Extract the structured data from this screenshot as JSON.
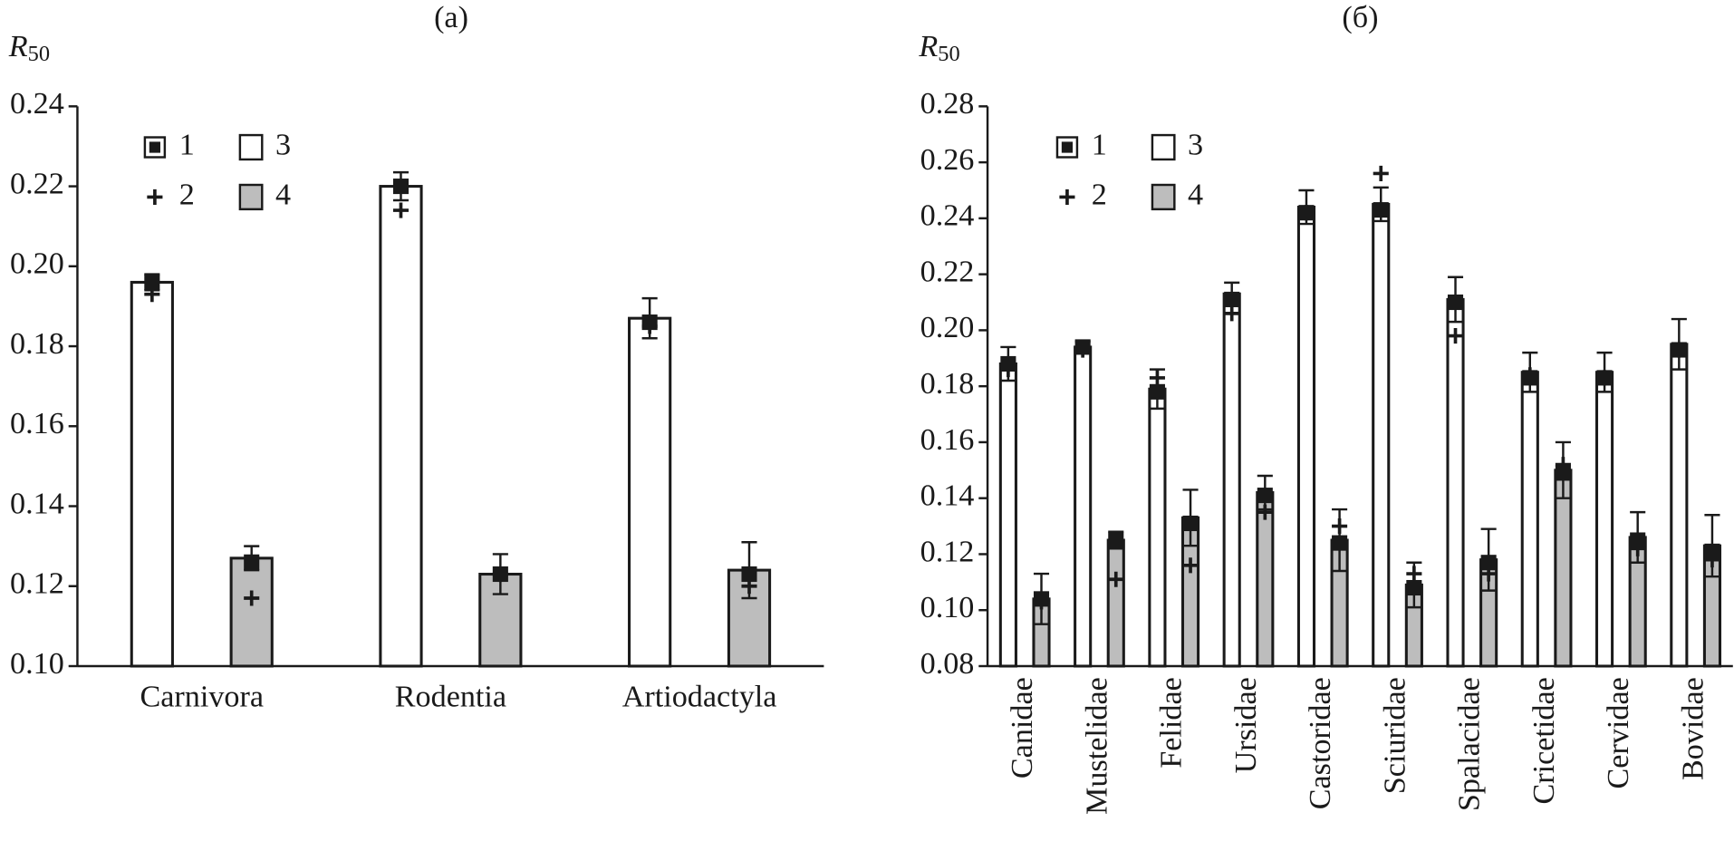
{
  "chart_data": [
    {
      "type": "bar",
      "title": "(a)",
      "y_label": {
        "symbol": "R",
        "subscript": "50"
      },
      "categories": [
        "Carnivora",
        "Rodentia",
        "Artiodactyla"
      ],
      "ylim": [
        0.1,
        0.24
      ],
      "yticks": [
        {
          "value": 0.1,
          "label": "0.10"
        },
        0.12,
        0.14,
        0.16,
        0.18,
        {
          "value": 0.2,
          "label": "0.20"
        },
        0.22,
        0.24
      ],
      "markers": [
        {
          "name": "1",
          "symbol": "square"
        },
        {
          "name": "2",
          "symbol": "plus"
        }
      ],
      "series": [
        {
          "name": "3",
          "color": "#ffffff",
          "values": [
            0.196,
            0.22,
            0.187
          ],
          "errors": [
            0.002,
            0.0035,
            0.005
          ],
          "marker_1": [
            0.196,
            0.22,
            0.186
          ],
          "marker_2": [
            0.193,
            0.214,
            0.185
          ]
        },
        {
          "name": "4",
          "color": "#bdbdbd",
          "values": [
            0.127,
            0.123,
            0.124
          ],
          "errors": [
            0.003,
            0.005,
            0.007
          ],
          "marker_1": [
            0.126,
            0.123,
            0.123
          ],
          "marker_2": [
            0.117,
            0.123,
            0.12
          ]
        }
      ]
    },
    {
      "type": "bar",
      "title": "(б)",
      "y_label": {
        "symbol": "R",
        "subscript": "50"
      },
      "categories": [
        "Canidae",
        "Mustelidae",
        "Felidae",
        "Ursidae",
        "Castoridae",
        "Sciuridae",
        "Spalacidae",
        "Cricetidae",
        "Cervidae",
        "Bovidae"
      ],
      "ylim": [
        0.08,
        0.28
      ],
      "yticks": [
        0.08,
        {
          "value": 0.1,
          "label": "0.10"
        },
        0.12,
        0.14,
        0.16,
        0.18,
        {
          "value": 0.2,
          "label": "0.20"
        },
        0.22,
        0.24,
        0.26,
        0.28
      ],
      "markers": [
        {
          "name": "1",
          "symbol": "square"
        },
        {
          "name": "2",
          "symbol": "plus"
        }
      ],
      "series": [
        {
          "name": "3",
          "color": "#ffffff",
          "values": [
            0.188,
            0.194,
            0.179,
            0.213,
            0.244,
            0.245,
            0.211,
            0.185,
            0.185,
            0.195
          ],
          "errors": [
            0.006,
            0.002,
            0.007,
            0.004,
            0.006,
            0.006,
            0.008,
            0.007,
            0.007,
            0.009
          ],
          "marker_1": [
            0.188,
            0.194,
            0.178,
            0.211,
            0.242,
            0.243,
            0.21,
            0.183,
            0.183,
            0.193
          ],
          "marker_2": [
            0.186,
            0.193,
            0.183,
            0.206,
            0.242,
            0.256,
            0.198,
            0.184,
            0.183,
            0.193
          ]
        },
        {
          "name": "4",
          "color": "#bdbdbd",
          "values": [
            0.104,
            0.125,
            0.133,
            0.142,
            0.125,
            0.109,
            0.118,
            0.15,
            0.126,
            0.123
          ],
          "errors": [
            0.009,
            0.003,
            0.01,
            0.006,
            0.011,
            0.008,
            0.011,
            0.01,
            0.009,
            0.011
          ],
          "marker_1": [
            0.104,
            0.125,
            0.131,
            0.141,
            0.124,
            0.108,
            0.117,
            0.149,
            0.125,
            0.121
          ],
          "marker_2": [
            0.103,
            0.111,
            0.116,
            0.135,
            0.13,
            0.113,
            0.113,
            0.152,
            0.122,
            0.118
          ]
        }
      ]
    }
  ]
}
